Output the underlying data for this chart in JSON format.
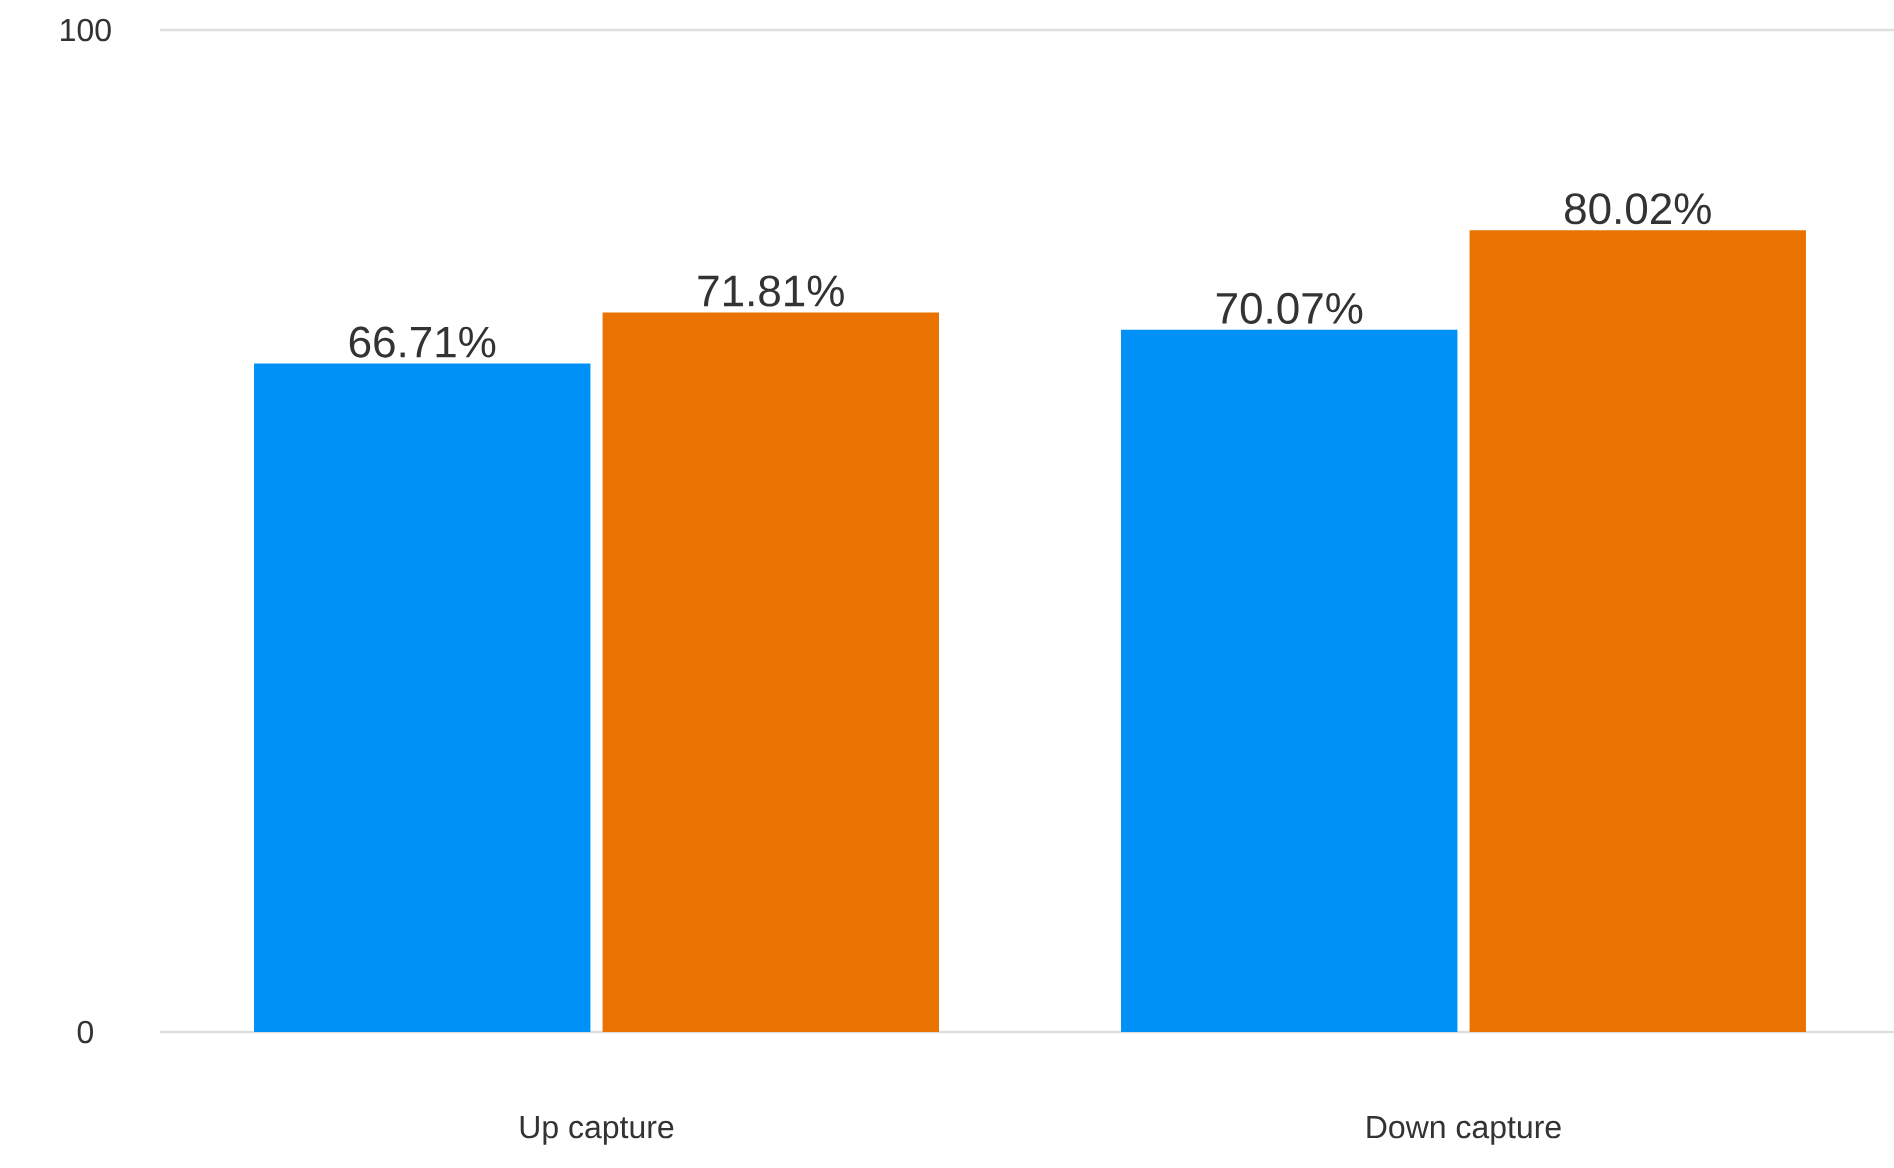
{
  "chart_data": {
    "type": "bar",
    "categories": [
      "Up capture",
      "Down capture"
    ],
    "series": [
      {
        "color": "#0091f7",
        "values": [
          66.71,
          70.07
        ],
        "value_labels": [
          "66.71%",
          "70.07%"
        ]
      },
      {
        "color": "#e97200",
        "values": [
          71.81,
          80.02
        ],
        "value_labels": [
          "71.81%",
          "80.02%"
        ]
      }
    ],
    "ylim": [
      0,
      100
    ],
    "yticks": [
      0,
      100
    ],
    "grid": "y"
  }
}
